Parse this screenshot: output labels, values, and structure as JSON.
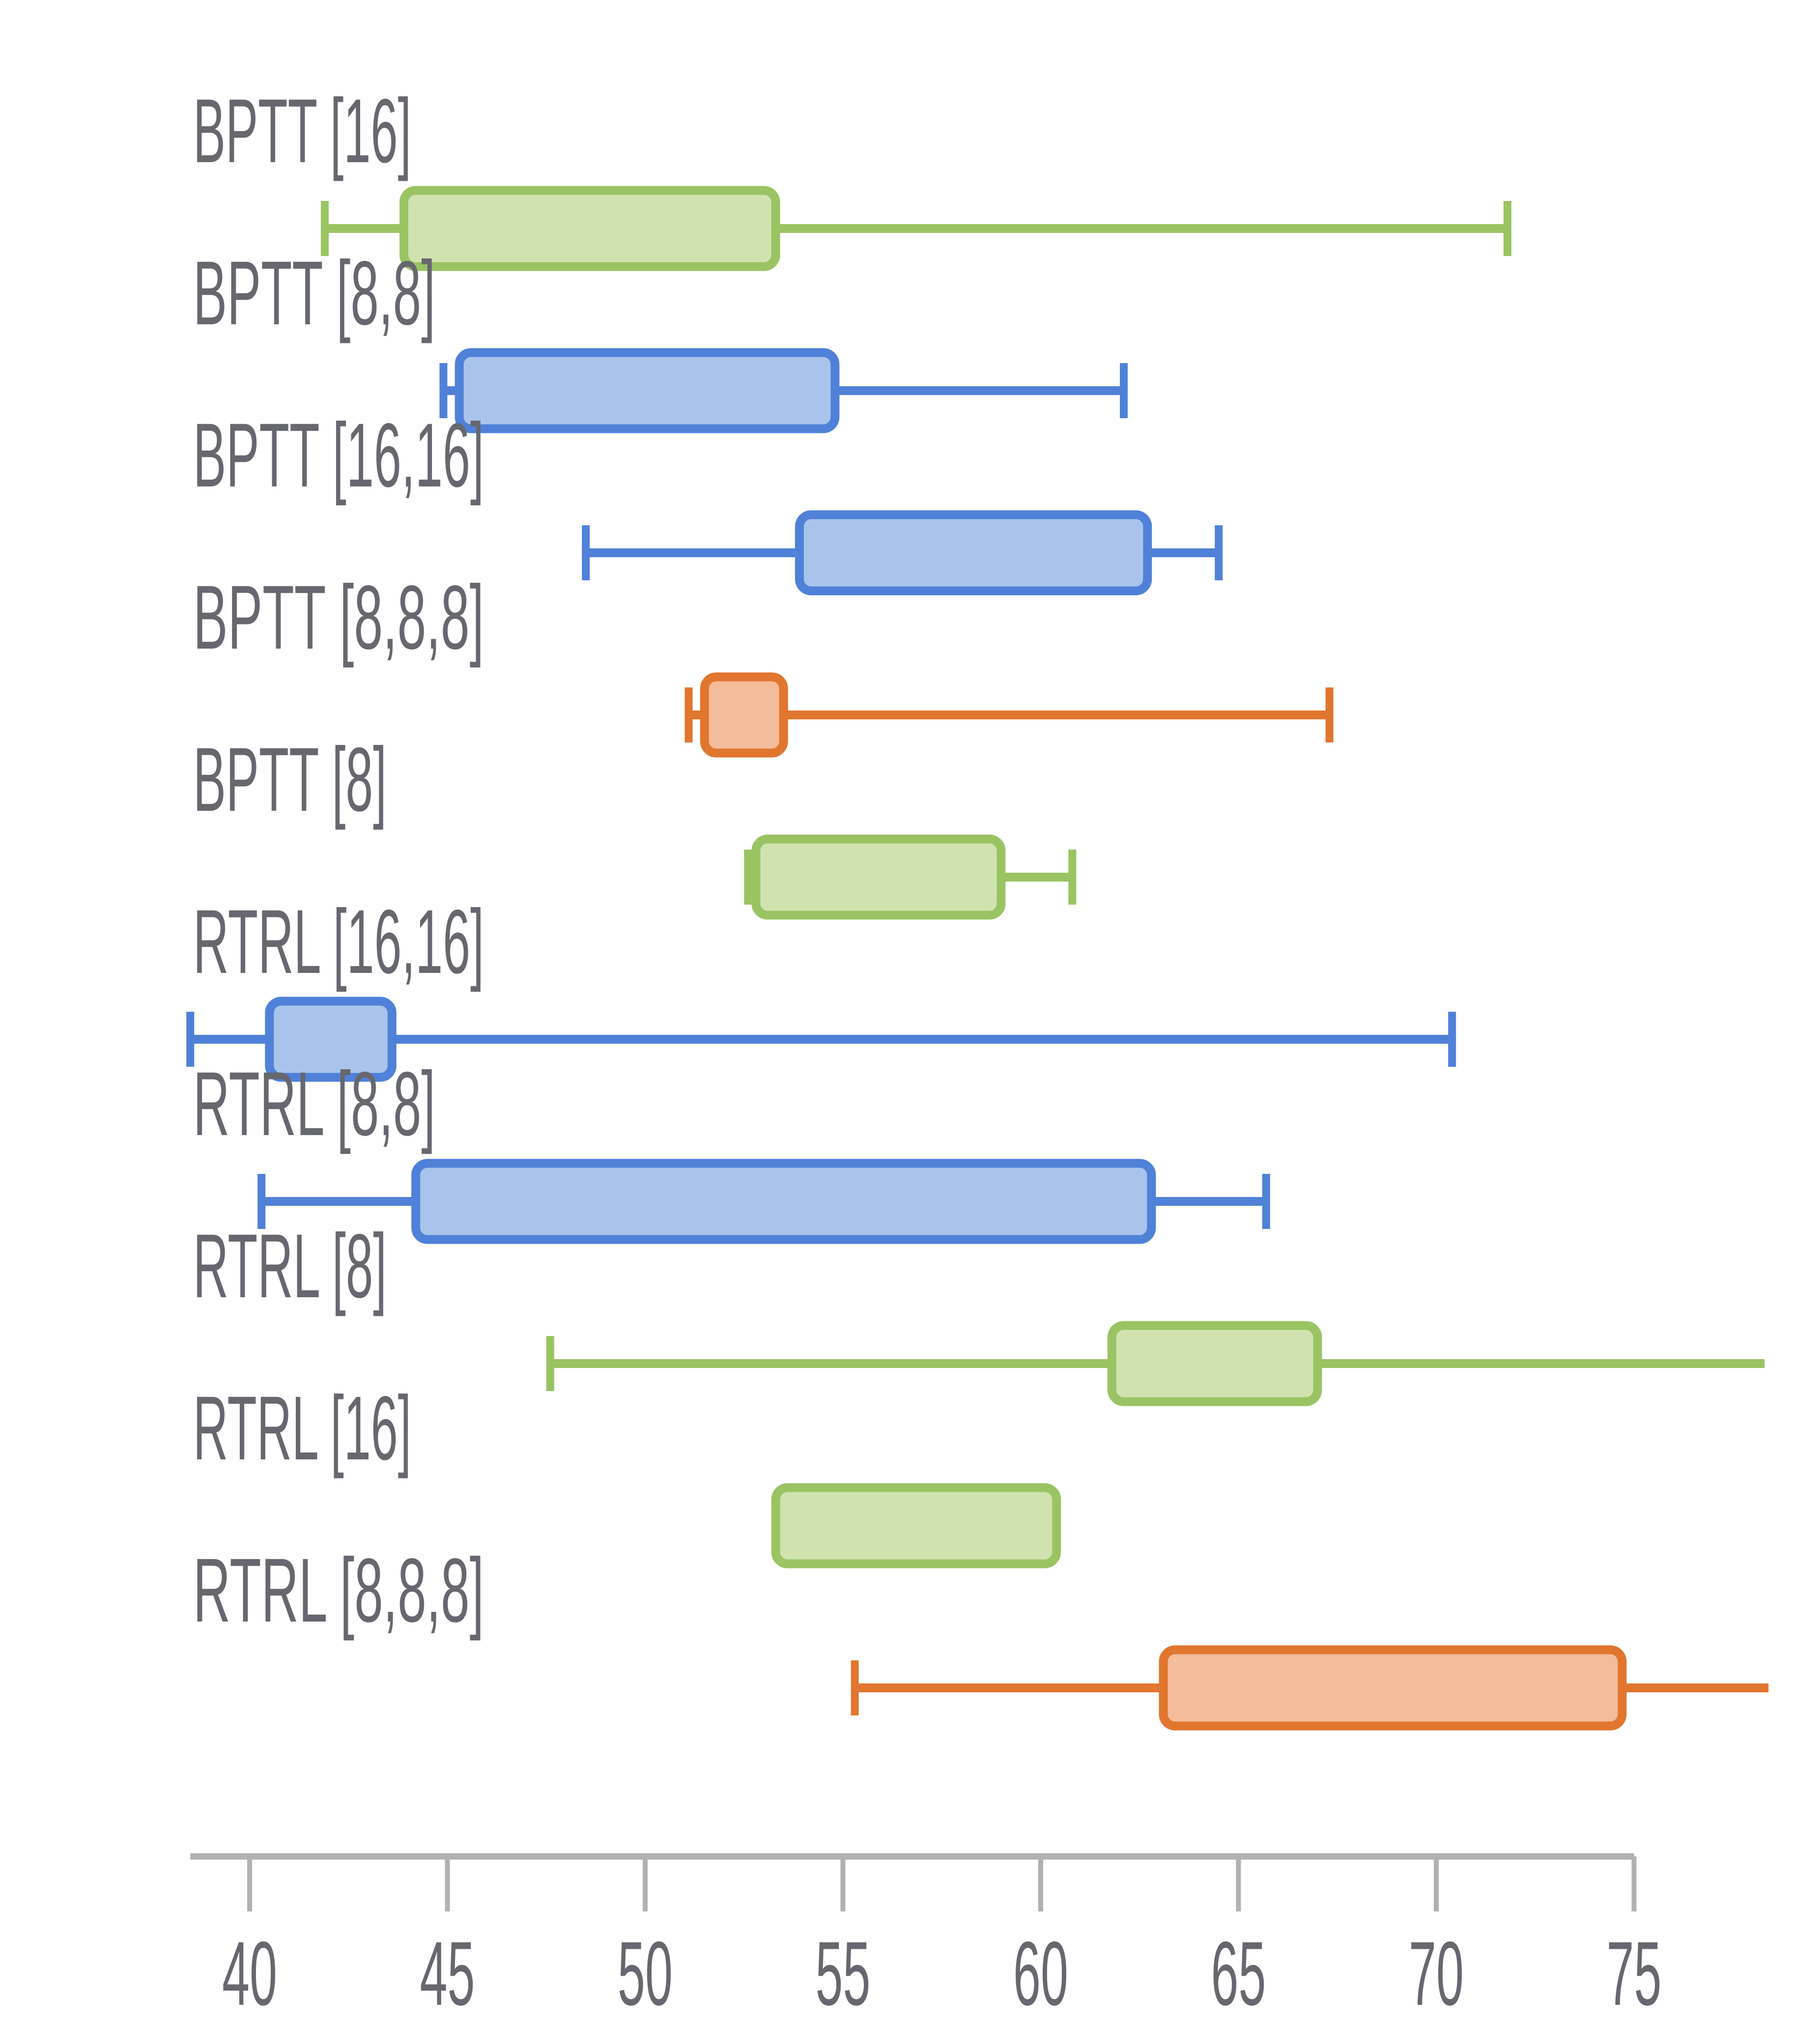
{
  "chart_data": {
    "type": "boxplot",
    "orientation": "horizontal",
    "title": "",
    "xlabel": "",
    "ylabel": "",
    "x_ticks": [
      40,
      45,
      50,
      55,
      60,
      65,
      70,
      75
    ],
    "x_axis_line_range": [
      38.5,
      75
    ],
    "plot_clip_max_x": 78.4,
    "grid": false,
    "legend": "none",
    "median_lines_shown": false,
    "categories": [
      "BPTT [16]",
      "BPTT [8,8]",
      "BPTT [16,16]",
      "BPTT [8,8,8]",
      "BPTT [8]",
      "RTRL [16,16]",
      "RTRL [8,8]",
      "RTRL [8]",
      "RTRL [16]",
      "RTRL [8,8,8]"
    ],
    "series": [
      {
        "label": "BPTT [16]",
        "color": "green",
        "whisker_low": 41.9,
        "q1": 43.9,
        "q3": 53.3,
        "whisker_high": 71.8,
        "low_cap": true,
        "high_cap": true
      },
      {
        "label": "BPTT [8,8]",
        "color": "blue",
        "whisker_low": 44.9,
        "q1": 45.3,
        "q3": 54.8,
        "whisker_high": 62.1,
        "low_cap": true,
        "high_cap": true
      },
      {
        "label": "BPTT [16,16]",
        "color": "blue",
        "whisker_low": 48.5,
        "q1": 53.9,
        "q3": 62.7,
        "whisker_high": 64.5,
        "low_cap": true,
        "high_cap": true
      },
      {
        "label": "BPTT [8,8,8]",
        "color": "orange",
        "whisker_low": 51.1,
        "q1": 51.5,
        "q3": 53.5,
        "whisker_high": 67.3,
        "low_cap": true,
        "high_cap": true
      },
      {
        "label": "BPTT [8]",
        "color": "green",
        "whisker_low": 52.6,
        "q1": 52.8,
        "q3": 59.0,
        "whisker_high": 60.8,
        "low_cap": true,
        "high_cap": true
      },
      {
        "label": "RTRL [16,16]",
        "color": "blue",
        "whisker_low": 38.5,
        "q1": 40.5,
        "q3": 43.6,
        "whisker_high": 70.4,
        "low_cap": true,
        "high_cap": true
      },
      {
        "label": "RTRL [8,8]",
        "color": "blue",
        "whisker_low": 40.3,
        "q1": 44.2,
        "q3": 62.8,
        "whisker_high": 65.7,
        "low_cap": true,
        "high_cap": true
      },
      {
        "label": "RTRL [8]",
        "color": "green",
        "whisker_low": 47.6,
        "q1": 61.8,
        "q3": 67.0,
        "whisker_high": 78.3,
        "low_cap": true,
        "high_cap": false
      },
      {
        "label": "RTRL [16]",
        "color": "green",
        "whisker_low": null,
        "q1": 53.3,
        "q3": 60.4,
        "whisker_high": null,
        "low_cap": false,
        "high_cap": false
      },
      {
        "label": "RTRL [8,8,8]",
        "color": "orange",
        "whisker_low": 55.3,
        "q1": 63.1,
        "q3": 74.7,
        "whisker_high": 78.4,
        "low_cap": true,
        "high_cap": false
      }
    ],
    "palette": {
      "green": {
        "fill": "#d0e3af",
        "stroke": "#9ac463"
      },
      "blue": {
        "fill": "#a9c4ec",
        "stroke": "#5081d8"
      },
      "orange": {
        "fill": "#f4bc9a",
        "stroke": "#e1762f"
      }
    },
    "axis_color": "#b1b1b1",
    "text_color": "#67676f",
    "background_color": "#ffffff"
  }
}
